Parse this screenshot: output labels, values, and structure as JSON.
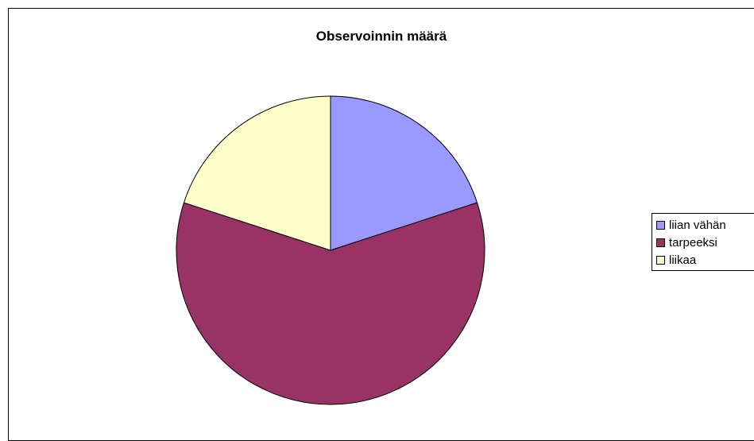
{
  "chart_data": {
    "type": "pie",
    "title": "Observoinnin määrä",
    "categories": [
      "liian vähän",
      "tarpeeksi",
      "liikaa"
    ],
    "values": [
      1,
      3,
      1
    ],
    "colors": [
      "#9999ff",
      "#993366",
      "#ffffcc"
    ],
    "legend_position": "right"
  }
}
